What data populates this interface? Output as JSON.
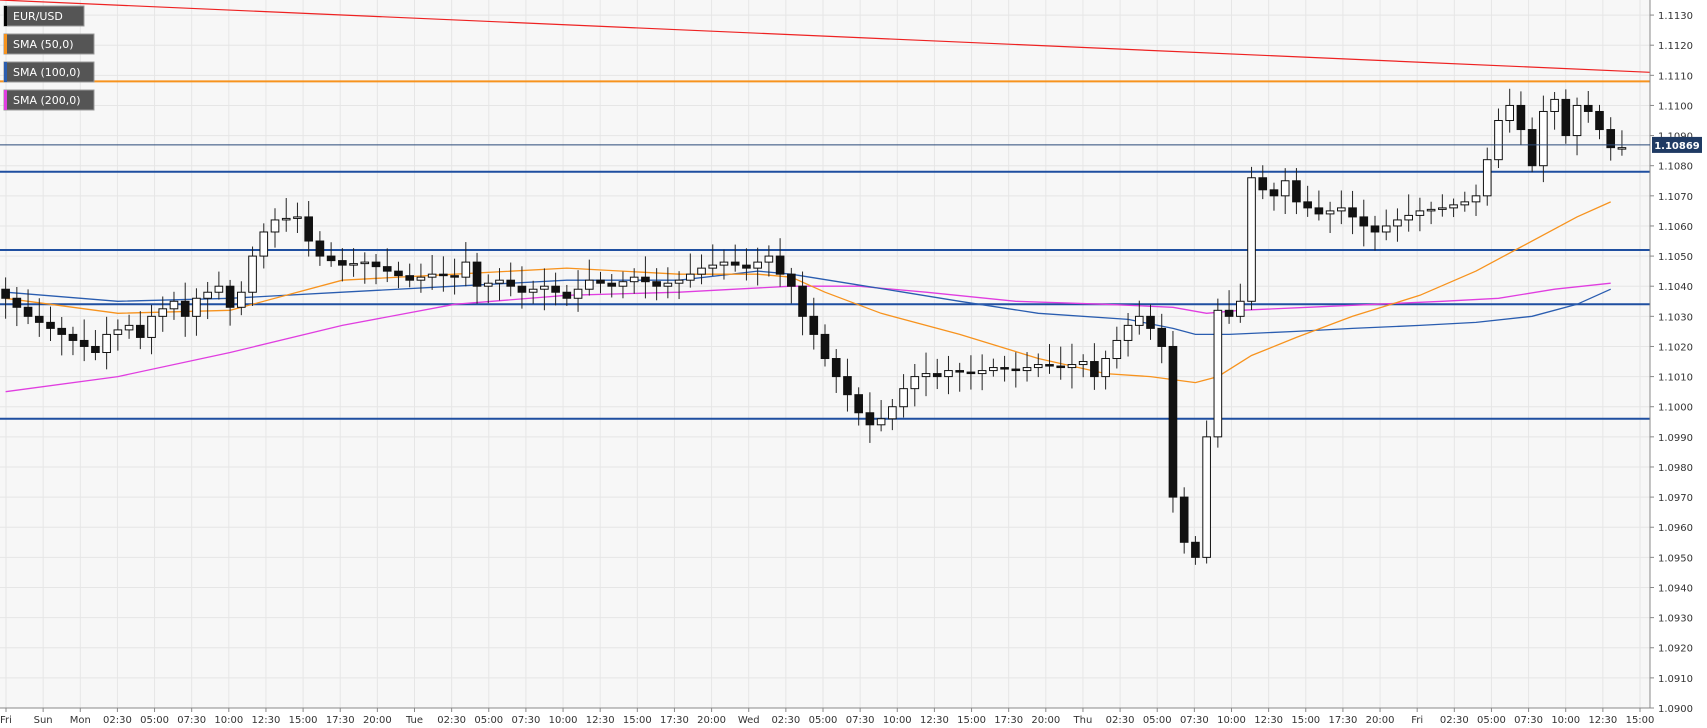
{
  "chart_data": {
    "type": "candlestick",
    "legend": [
      {
        "label": "EUR/USD",
        "color": "#000000"
      },
      {
        "label": "SMA (50,0)",
        "color": "#f7931e"
      },
      {
        "label": "SMA (100,0)",
        "color": "#2a5db0"
      },
      {
        "label": "SMA (200,0)",
        "color": "#e03ee0"
      }
    ],
    "current_price": "1.10869",
    "ylim": [
      1.09,
      1.1135
    ],
    "y_ticks": [
      "1.0900",
      "1.0910",
      "1.0920",
      "1.0930",
      "1.0940",
      "1.0950",
      "1.0960",
      "1.0970",
      "1.0980",
      "1.0990",
      "1.1000",
      "1.1010",
      "1.1020",
      "1.1030",
      "1.1040",
      "1.1050",
      "1.1060",
      "1.1070",
      "1.1080",
      "1.1090",
      "1.1100",
      "1.1110",
      "1.1120",
      "1.1130"
    ],
    "x_ticks": [
      "Fri",
      "Sun",
      "Mon",
      "02:30",
      "05:00",
      "07:30",
      "10:00",
      "12:30",
      "15:00",
      "17:30",
      "20:00",
      "Tue",
      "02:30",
      "05:00",
      "07:30",
      "10:00",
      "12:30",
      "15:00",
      "17:30",
      "20:00",
      "Wed",
      "02:30",
      "05:00",
      "07:30",
      "10:00",
      "12:30",
      "15:00",
      "17:30",
      "20:00",
      "Thu",
      "02:30",
      "05:00",
      "07:30",
      "10:00",
      "12:30",
      "15:00",
      "17:30",
      "20:00",
      "Fri",
      "02:30",
      "05:00",
      "07:30",
      "10:00",
      "12:30",
      "15:00"
    ],
    "horizontal_levels": [
      {
        "price": 1.1108,
        "color": "#f7931e"
      },
      {
        "price": 1.1078,
        "color": "#1f4fa0"
      },
      {
        "price": 1.1052,
        "color": "#1f4fa0"
      },
      {
        "price": 1.1034,
        "color": "#1f4fa0"
      },
      {
        "price": 1.0996,
        "color": "#1f4fa0"
      }
    ],
    "trendline": {
      "from": 1.1135,
      "to": 1.1111,
      "color": "#ee2222"
    },
    "price_path": [
      [
        0,
        1.1036
      ],
      [
        2,
        1.103
      ],
      [
        4,
        1.1026
      ],
      [
        6,
        1.1022
      ],
      [
        8,
        1.1018
      ],
      [
        9,
        1.1024
      ],
      [
        11,
        1.1027
      ],
      [
        12,
        1.1023
      ],
      [
        13,
        1.103
      ],
      [
        15,
        1.1035
      ],
      [
        16,
        1.103
      ],
      [
        17,
        1.1036
      ],
      [
        19,
        1.104
      ],
      [
        20,
        1.1033
      ],
      [
        21,
        1.1038
      ],
      [
        22,
        1.105
      ],
      [
        23,
        1.1058
      ],
      [
        24,
        1.1062
      ],
      [
        26,
        1.1063
      ],
      [
        27,
        1.1055
      ],
      [
        28,
        1.105
      ],
      [
        30,
        1.1047
      ],
      [
        32,
        1.1048
      ],
      [
        34,
        1.1045
      ],
      [
        36,
        1.1042
      ],
      [
        38,
        1.1044
      ],
      [
        40,
        1.1043
      ],
      [
        41,
        1.1048
      ],
      [
        42,
        1.104
      ],
      [
        44,
        1.1042
      ],
      [
        46,
        1.1038
      ],
      [
        48,
        1.104
      ],
      [
        50,
        1.1036
      ],
      [
        52,
        1.1042
      ],
      [
        54,
        1.104
      ],
      [
        56,
        1.1043
      ],
      [
        58,
        1.104
      ],
      [
        60,
        1.1042
      ],
      [
        62,
        1.1046
      ],
      [
        64,
        1.1048
      ],
      [
        66,
        1.1046
      ],
      [
        68,
        1.105
      ],
      [
        69,
        1.1044
      ],
      [
        70,
        1.104
      ],
      [
        71,
        1.103
      ],
      [
        72,
        1.1024
      ],
      [
        73,
        1.1016
      ],
      [
        74,
        1.101
      ],
      [
        75,
        1.1004
      ],
      [
        76,
        1.0998
      ],
      [
        77,
        1.0994
      ],
      [
        78,
        1.0996
      ],
      [
        79,
        1.1
      ],
      [
        80,
        1.1006
      ],
      [
        81,
        1.101
      ],
      [
        82,
        1.1011
      ],
      [
        83,
        1.101
      ],
      [
        84,
        1.1012
      ],
      [
        86,
        1.1011
      ],
      [
        88,
        1.1013
      ],
      [
        90,
        1.1012
      ],
      [
        92,
        1.1014
      ],
      [
        94,
        1.1013
      ],
      [
        96,
        1.1015
      ],
      [
        97,
        1.101
      ],
      [
        98,
        1.1016
      ],
      [
        99,
        1.1022
      ],
      [
        100,
        1.1027
      ],
      [
        101,
        1.103
      ],
      [
        102,
        1.1026
      ],
      [
        103,
        1.102
      ],
      [
        104,
        1.097
      ],
      [
        105,
        1.0955
      ],
      [
        106,
        1.095
      ],
      [
        107,
        1.099
      ],
      [
        108,
        1.1032
      ],
      [
        109,
        1.103
      ],
      [
        110,
        1.1035
      ],
      [
        111,
        1.1076
      ],
      [
        112,
        1.1072
      ],
      [
        113,
        1.107
      ],
      [
        114,
        1.1075
      ],
      [
        115,
        1.1068
      ],
      [
        117,
        1.1064
      ],
      [
        119,
        1.1066
      ],
      [
        121,
        1.106
      ],
      [
        122,
        1.1058
      ],
      [
        124,
        1.1062
      ],
      [
        126,
        1.1065
      ],
      [
        128,
        1.1066
      ],
      [
        130,
        1.1068
      ],
      [
        131,
        1.107
      ],
      [
        132,
        1.1082
      ],
      [
        133,
        1.1095
      ],
      [
        134,
        1.11
      ],
      [
        135,
        1.1092
      ],
      [
        136,
        1.108
      ],
      [
        137,
        1.1098
      ],
      [
        138,
        1.1102
      ],
      [
        139,
        1.109
      ],
      [
        140,
        1.11
      ],
      [
        141,
        1.1098
      ],
      [
        142,
        1.1092
      ],
      [
        143,
        1.1086
      ]
    ],
    "sma50_path": [
      [
        0,
        1.1036
      ],
      [
        10,
        1.1031
      ],
      [
        20,
        1.1032
      ],
      [
        30,
        1.1042
      ],
      [
        40,
        1.1044
      ],
      [
        50,
        1.1046
      ],
      [
        60,
        1.1044
      ],
      [
        67,
        1.1044
      ],
      [
        70,
        1.1043
      ],
      [
        73,
        1.1038
      ],
      [
        78,
        1.1031
      ],
      [
        85,
        1.1024
      ],
      [
        92,
        1.1016
      ],
      [
        98,
        1.1011
      ],
      [
        102,
        1.101
      ],
      [
        104,
        1.1009
      ],
      [
        106,
        1.1008
      ],
      [
        108,
        1.101
      ],
      [
        111,
        1.1017
      ],
      [
        115,
        1.1023
      ],
      [
        120,
        1.103
      ],
      [
        126,
        1.1037
      ],
      [
        131,
        1.1045
      ],
      [
        135,
        1.1053
      ],
      [
        140,
        1.1063
      ],
      [
        143,
        1.1068
      ]
    ],
    "sma100_path": [
      [
        0,
        1.1038
      ],
      [
        10,
        1.1035
      ],
      [
        20,
        1.1036
      ],
      [
        30,
        1.1038
      ],
      [
        40,
        1.104
      ],
      [
        50,
        1.1042
      ],
      [
        60,
        1.1042
      ],
      [
        67,
        1.1045
      ],
      [
        70,
        1.1044
      ],
      [
        75,
        1.1041
      ],
      [
        80,
        1.1038
      ],
      [
        85,
        1.1035
      ],
      [
        92,
        1.1031
      ],
      [
        100,
        1.1029
      ],
      [
        104,
        1.1026
      ],
      [
        106,
        1.1024
      ],
      [
        109,
        1.1024
      ],
      [
        115,
        1.1025
      ],
      [
        120,
        1.1026
      ],
      [
        126,
        1.1027
      ],
      [
        131,
        1.1028
      ],
      [
        136,
        1.103
      ],
      [
        140,
        1.1034
      ],
      [
        143,
        1.1039
      ]
    ],
    "sma200_path": [
      [
        0,
        1.1005
      ],
      [
        10,
        1.101
      ],
      [
        20,
        1.1018
      ],
      [
        30,
        1.1027
      ],
      [
        40,
        1.1034
      ],
      [
        50,
        1.1037
      ],
      [
        60,
        1.1038
      ],
      [
        70,
        1.104
      ],
      [
        76,
        1.104
      ],
      [
        82,
        1.1038
      ],
      [
        90,
        1.1035
      ],
      [
        98,
        1.1034
      ],
      [
        104,
        1.1033
      ],
      [
        107,
        1.1031
      ],
      [
        110,
        1.1032
      ],
      [
        116,
        1.1033
      ],
      [
        122,
        1.1034
      ],
      [
        128,
        1.1035
      ],
      [
        133,
        1.1036
      ],
      [
        138,
        1.1039
      ],
      [
        143,
        1.1041
      ]
    ]
  }
}
